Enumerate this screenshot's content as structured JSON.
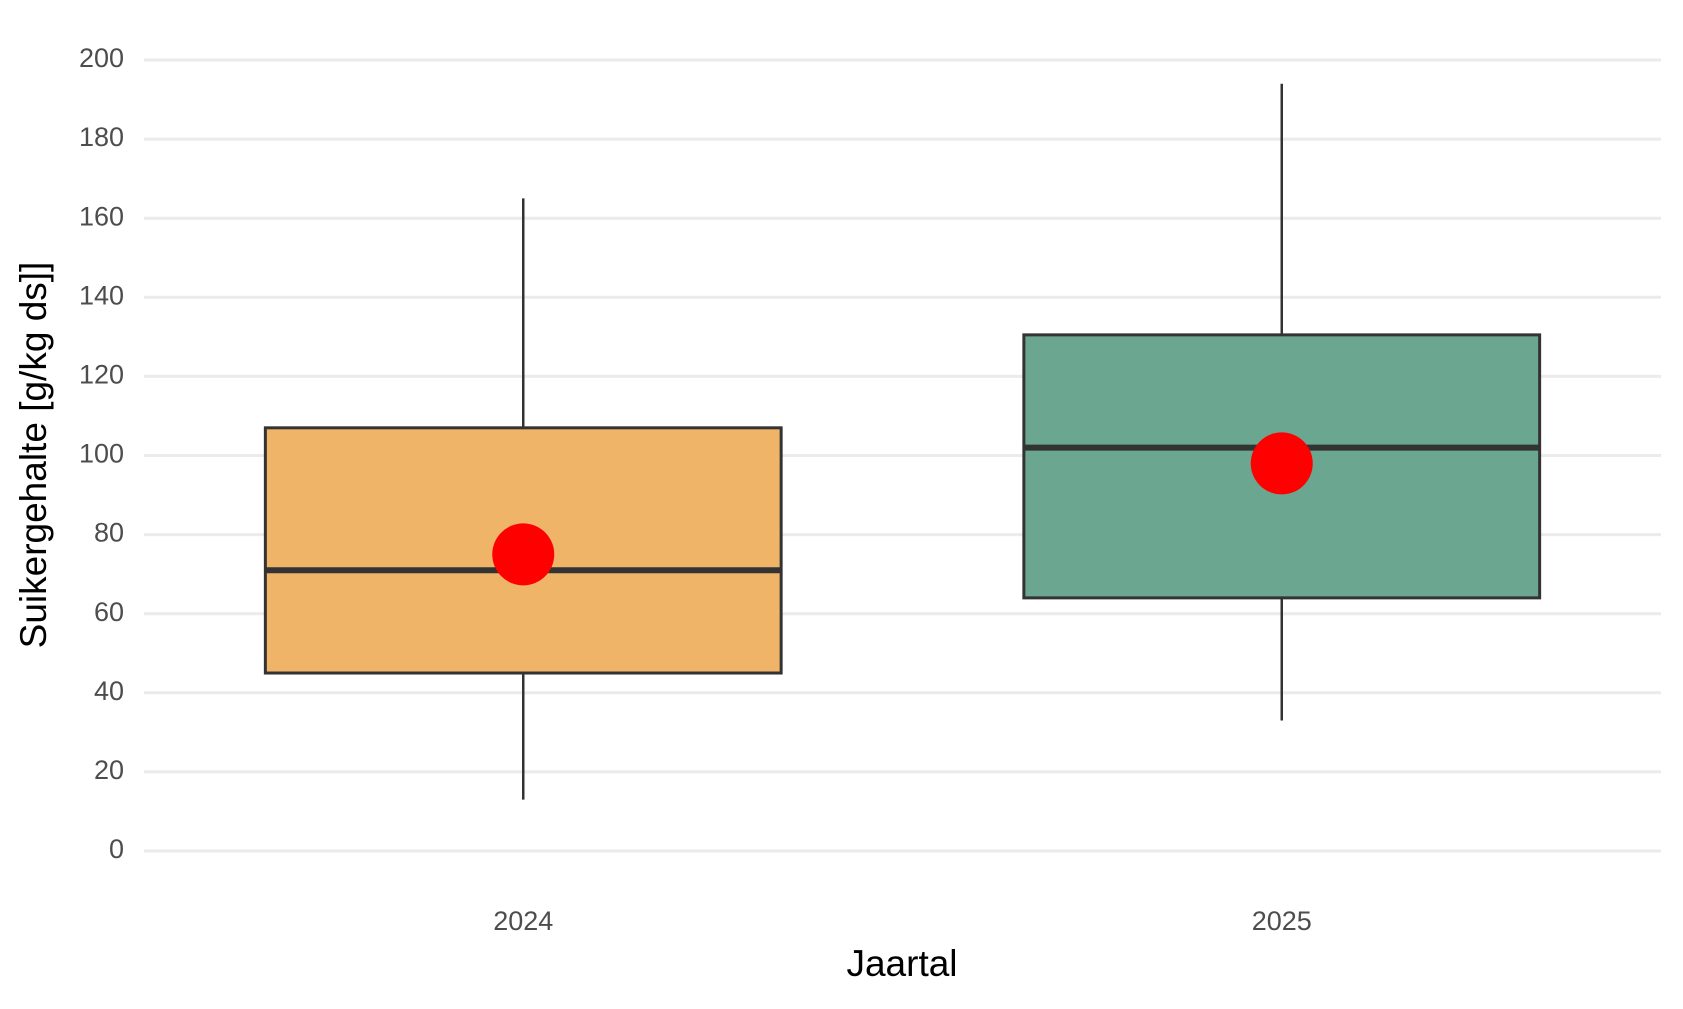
{
  "chart_data": {
    "type": "box",
    "x_label": "Jaartal",
    "y_label": "Suikergehalte [g/kg ds]]",
    "categories": [
      "2024",
      "2025"
    ],
    "colors": [
      "#f0b468",
      "#6aa690"
    ],
    "mean_color": "#ff0000",
    "min": [
      13,
      33
    ],
    "q1": [
      45,
      64
    ],
    "median": [
      71,
      102
    ],
    "q3": [
      107,
      130.5
    ],
    "max": [
      165,
      194
    ],
    "mean": [
      75,
      98
    ],
    "ylim": [
      0,
      200
    ],
    "yticks": [
      0,
      20,
      40,
      60,
      80,
      100,
      120,
      140,
      160,
      180,
      200
    ],
    "grid": true
  }
}
